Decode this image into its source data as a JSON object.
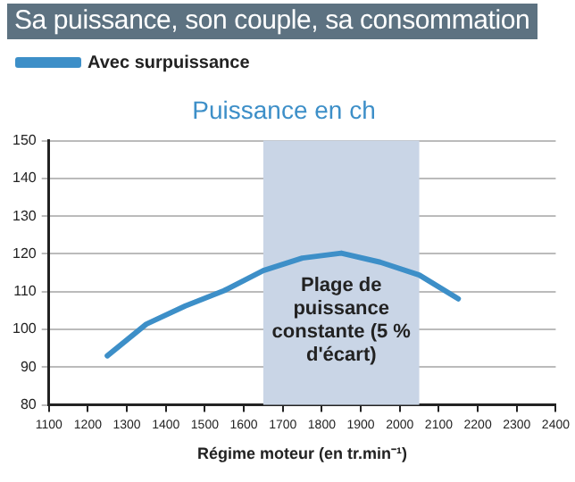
{
  "chart_data": {
    "type": "line",
    "title": "Sa puissance, son couple, sa consommation",
    "subtitle": "Puissance en ch",
    "xlabel": "Régime moteur (en tr.min⁻¹)",
    "x": [
      1250,
      1350,
      1450,
      1550,
      1650,
      1750,
      1850,
      1950,
      2050,
      2150
    ],
    "series": [
      {
        "name": "Avec surpuissance",
        "color": "#3d8fc8",
        "values": [
          93,
          101.4,
          106.2,
          110.3,
          115.6,
          118.9,
          120.2,
          117.8,
          114.4,
          108.1
        ]
      }
    ],
    "xlim": [
      1100,
      2400
    ],
    "xticks": [
      1100,
      1200,
      1300,
      1400,
      1500,
      1600,
      1700,
      1800,
      1900,
      2000,
      2100,
      2200,
      2300,
      2400
    ],
    "ylim": [
      80,
      150
    ],
    "yticks": [
      80,
      90,
      100,
      110,
      120,
      130,
      140,
      150
    ],
    "bands": [
      {
        "axis": "x",
        "from": 1650,
        "to": 2050,
        "label": "Plage de puissance constante (5 % d'écart)",
        "color": "#c9d5e6"
      }
    ],
    "grid": "y",
    "legend": "top left",
    "marker": "none",
    "line_style": "solid"
  }
}
